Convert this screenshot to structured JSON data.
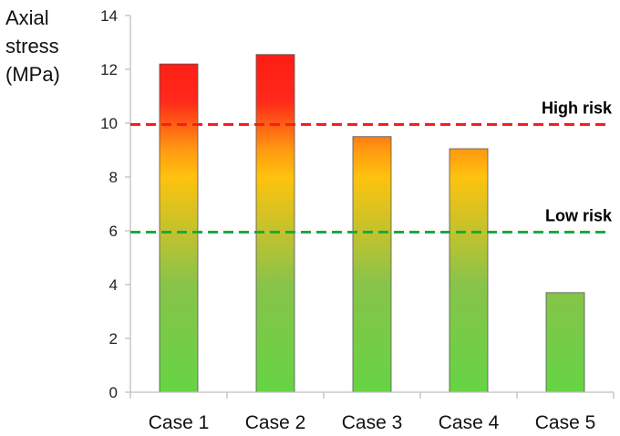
{
  "chart_data": {
    "type": "bar",
    "ylabel_lines": [
      "Axial",
      "stress",
      "(MPa)"
    ],
    "categories": [
      "Case 1",
      "Case 2",
      "Case 3",
      "Case 4",
      "Case 5"
    ],
    "values": [
      12.2,
      12.55,
      9.5,
      9.05,
      3.7
    ],
    "ylim": [
      0,
      14
    ],
    "yticks": [
      0,
      2,
      4,
      6,
      8,
      10,
      12,
      14
    ],
    "grid": false,
    "reference_lines": [
      {
        "label": "High risk",
        "value": 9.95,
        "color": "#ff1a1a"
      },
      {
        "label": "Low risk",
        "value": 5.95,
        "color": "#1aaa3c"
      }
    ],
    "bar_gradient": [
      {
        "value": 0,
        "color": "#66d444"
      },
      {
        "value": 4,
        "color": "#88c34a"
      },
      {
        "value": 8,
        "color": "#ffc20e"
      },
      {
        "value": 9,
        "color": "#ff9a10"
      },
      {
        "value": 10.8,
        "color": "#ff2a1a"
      },
      {
        "value": 14,
        "color": "#ff1010"
      }
    ],
    "colors": {
      "axis": "#bfbfbf",
      "bar_outline": "#555555"
    }
  }
}
